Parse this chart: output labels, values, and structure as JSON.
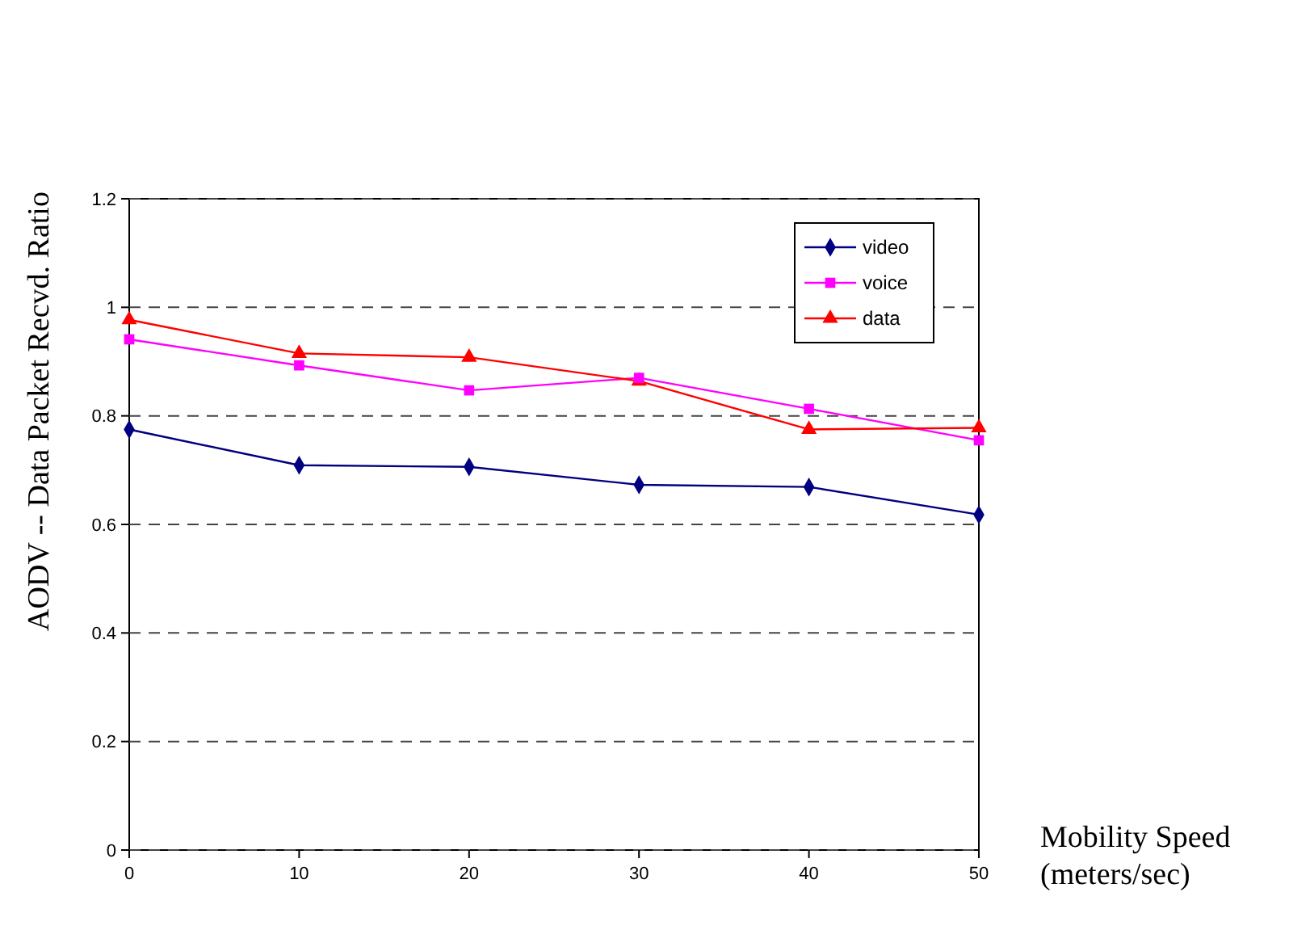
{
  "chart_data": {
    "type": "line",
    "xlabel": "Mobility Speed\n(meters/sec)",
    "ylabel": "AODV -- Data Packet Recvd. Ratio",
    "x": [
      0,
      10,
      20,
      30,
      40,
      50
    ],
    "series": [
      {
        "name": "video",
        "color": "#000080",
        "marker": "diamond",
        "values": [
          0.775,
          0.709,
          0.706,
          0.673,
          0.669,
          0.618
        ]
      },
      {
        "name": "voice",
        "color": "#ff00ff",
        "marker": "square",
        "values": [
          0.941,
          0.893,
          0.847,
          0.87,
          0.813,
          0.755
        ]
      },
      {
        "name": "data",
        "color": "#ff0000",
        "marker": "triangle",
        "values": [
          0.977,
          0.915,
          0.908,
          0.864,
          0.775,
          0.778
        ]
      }
    ],
    "xlim": [
      0,
      50
    ],
    "xticks": [
      0,
      10,
      20,
      30,
      40,
      50
    ],
    "ylim": [
      0,
      1.2
    ],
    "yticks": [
      0,
      0.2,
      0.4,
      0.6,
      0.8,
      1,
      1.2
    ],
    "grid": "y",
    "legend": "top right",
    "line_style": "solid"
  }
}
